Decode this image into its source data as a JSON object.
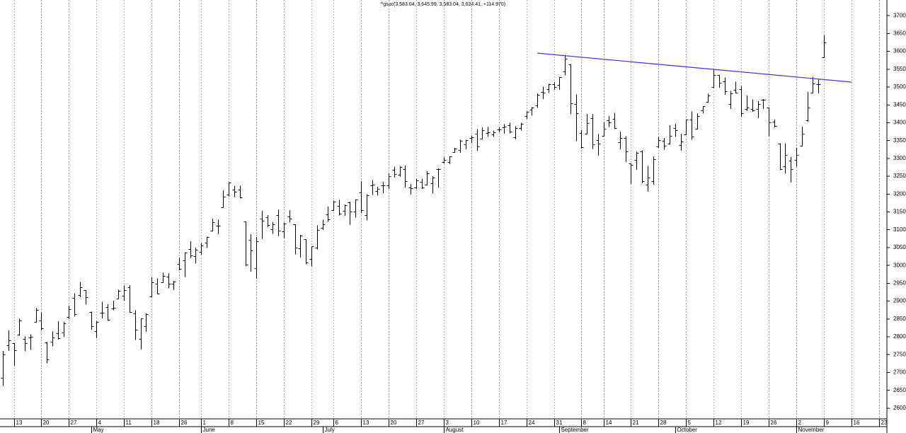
{
  "chart_data": {
    "type": "ohlc",
    "title": "^gspc(3,583.04, 3,645.99, 3,583.04, 3,624.41, +114.970)",
    "color": "#000000",
    "grid": true,
    "ylim": [
      2570,
      3744
    ],
    "yticks": [
      2600,
      2650,
      2700,
      2750,
      2800,
      2850,
      2900,
      2950,
      3000,
      3050,
      3100,
      3150,
      3200,
      3250,
      3300,
      3350,
      3400,
      3450,
      3500,
      3550,
      3600,
      3650,
      3700
    ],
    "categories": [
      null,
      null,
      "13",
      null,
      null,
      null,
      null,
      "20",
      null,
      null,
      null,
      null,
      "27",
      null,
      null,
      null,
      null,
      "4",
      null,
      null,
      null,
      null,
      "11",
      null,
      null,
      null,
      null,
      "18",
      null,
      null,
      null,
      null,
      "26",
      null,
      null,
      null,
      "1",
      null,
      null,
      null,
      null,
      "8",
      null,
      null,
      null,
      null,
      "15",
      null,
      null,
      null,
      null,
      "22",
      null,
      null,
      null,
      null,
      "29",
      null,
      null,
      null,
      "6",
      null,
      null,
      null,
      null,
      "13",
      null,
      null,
      null,
      null,
      "20",
      null,
      null,
      null,
      null,
      "27",
      null,
      null,
      null,
      null,
      "3",
      null,
      null,
      null,
      null,
      "10",
      null,
      null,
      null,
      null,
      "17",
      null,
      null,
      null,
      null,
      "24",
      null,
      null,
      null,
      null,
      "31",
      null,
      null,
      null,
      null,
      "8",
      null,
      null,
      null,
      "14",
      null,
      null,
      null,
      null,
      "21",
      null,
      null,
      null,
      null,
      "28",
      null,
      null,
      null,
      null,
      "5",
      null,
      null,
      null,
      null,
      "12",
      null,
      null,
      null,
      null,
      "19",
      null,
      null,
      null,
      null,
      "26",
      null,
      null,
      null,
      null,
      "2",
      null,
      null,
      null,
      null,
      "9",
      null,
      null,
      null,
      null,
      "16",
      null,
      null,
      null,
      null,
      "23",
      null
    ],
    "months": [
      null,
      null,
      null,
      null,
      null,
      null,
      null,
      null,
      null,
      null,
      null,
      null,
      null,
      null,
      null,
      null,
      "May",
      null,
      null,
      null,
      null,
      null,
      null,
      null,
      null,
      null,
      null,
      null,
      null,
      null,
      null,
      null,
      null,
      null,
      null,
      null,
      "June",
      null,
      null,
      null,
      null,
      null,
      null,
      null,
      null,
      null,
      null,
      null,
      null,
      null,
      null,
      null,
      null,
      null,
      null,
      null,
      null,
      null,
      "July",
      null,
      null,
      null,
      null,
      null,
      null,
      null,
      null,
      null,
      null,
      null,
      null,
      null,
      null,
      null,
      null,
      null,
      null,
      null,
      null,
      null,
      "August",
      null,
      null,
      null,
      null,
      null,
      null,
      null,
      null,
      null,
      null,
      null,
      null,
      null,
      null,
      null,
      null,
      null,
      null,
      null,
      null,
      "September",
      null,
      null,
      null,
      null,
      null,
      null,
      null,
      null,
      null,
      null,
      null,
      null,
      null,
      null,
      null,
      null,
      null,
      null,
      null,
      null,
      "October",
      null,
      null,
      null,
      null,
      null,
      null,
      null,
      null,
      null,
      null,
      null,
      null,
      null,
      null,
      null,
      null,
      null,
      null,
      null,
      null,
      null,
      "November",
      null,
      null,
      null,
      null,
      null,
      null,
      null,
      null,
      null,
      null,
      null,
      null,
      null,
      null,
      null,
      null
    ],
    "open": [
      2686,
      2776,
      2782,
      2805,
      2795,
      2799,
      2842,
      2845,
      2784,
      2787,
      2810,
      2812,
      2855,
      2909,
      2918,
      2930,
      2870,
      2815,
      2868,
      2883,
      2879,
      2908,
      2915,
      2939,
      2865,
      2794,
      2829,
      2913,
      2948,
      2953,
      2969,
      2948,
      3005,
      3015,
      3046,
      3026,
      3038,
      3064,
      3098,
      3112,
      3163,
      3199,
      3213,
      3213,
      3123,
      3072,
      2993,
      3131,
      3136,
      3101,
      3141,
      3095,
      3138,
      3115,
      3047,
      3074,
      3018,
      3050,
      3105,
      3144,
      3155,
      3166,
      3154,
      3177,
      3152,
      3205,
      3141,
      3225,
      3208,
      3224,
      3224,
      3268,
      3255,
      3271,
      3218,
      3219,
      3234,
      3227,
      3231,
      3270,
      3289,
      3289,
      3318,
      3323,
      3340,
      3357,
      3370,
      3356,
      3372,
      3368,
      3381,
      3387,
      3392,
      3360,
      3386,
      3419,
      3436,
      3449,
      3486,
      3495,
      3509,
      3507,
      3543,
      3564,
      3453,
      3371,
      3370,
      3413,
      3352,
      3364,
      3407,
      3411,
      3346,
      3357,
      3285,
      3295,
      3320,
      3226,
      3236,
      3334,
      3350,
      3341,
      3385,
      3338,
      3367,
      3409,
      3384,
      3434,
      3459,
      3500,
      3534,
      3515,
      3453,
      3493,
      3494,
      3439,
      3439,
      3439,
      3464,
      3442,
      3403,
      3342,
      3277,
      3294,
      3296,
      3336,
      3406,
      3485,
      3508,
      3583.04,
      null,
      null,
      null,
      null,
      null,
      null,
      null,
      null,
      null,
      null,
      null
    ],
    "high": [
      2760,
      2818,
      2782,
      2851,
      2801,
      2807,
      2880,
      2868,
      2785,
      2815,
      2844,
      2842,
      2887,
      2922,
      2954,
      2930,
      2870,
      2844,
      2898,
      2891,
      2901,
      2932,
      2944,
      2945,
      2874,
      2852,
      2865,
      2968,
      2964,
      2980,
      2978,
      2957,
      3022,
      3037,
      3068,
      3050,
      3063,
      3081,
      3131,
      3128,
      3211,
      3233,
      3222,
      3223,
      3123,
      3088,
      3080,
      3153,
      3141,
      3121,
      3156,
      3120,
      3155,
      3115,
      3086,
      3074,
      3053,
      3112,
      3128,
      3165,
      3182,
      3184,
      3171,
      3179,
      3186,
      3235,
      3200,
      3238,
      3220,
      3233,
      3258,
      3277,
      3279,
      3280,
      3228,
      3242,
      3243,
      3264,
      3250,
      3272,
      3303,
      3306,
      3330,
      3352,
      3352,
      3364,
      3382,
      3387,
      3388,
      3378,
      3388,
      3396,
      3400,
      3390,
      3400,
      3432,
      3444,
      3482,
      3501,
      3509,
      3514,
      3529,
      3588,
      3564,
      3479,
      3380,
      3425,
      3425,
      3368,
      3402,
      3419,
      3428,
      3375,
      3362,
      3286,
      3320,
      3323,
      3279,
      3306,
      3360,
      3357,
      3393,
      3397,
      3369,
      3409,
      3432,
      3426,
      3447,
      3482,
      3550,
      3534,
      3527,
      3489,
      3515,
      3502,
      3476,
      3465,
      3460,
      3466,
      3442,
      3409,
      3342,
      3342,
      3304,
      3330,
      3389,
      3486,
      3529,
      3521,
      3645.99,
      null,
      null,
      null,
      null,
      null,
      null,
      null,
      null,
      null,
      null,
      null
    ],
    "low": [
      2664,
      2762,
      2721,
      2805,
      2761,
      2765,
      2842,
      2820,
      2728,
      2775,
      2794,
      2801,
      2852,
      2859,
      2913,
      2892,
      2822,
      2798,
      2854,
      2847,
      2876,
      2908,
      2903,
      2869,
      2793,
      2766,
      2816,
      2913,
      2922,
      2953,
      2938,
      2933,
      2988,
      2970,
      3023,
      3007,
      3032,
      3051,
      3098,
      3090,
      3163,
      3196,
      3193,
      3190,
      2999,
      2984,
      2965,
      3076,
      3109,
      3091,
      3084,
      3079,
      3122,
      3033,
      3024,
      3005,
      2999,
      3047,
      3101,
      3124,
      3155,
      3142,
      3141,
      3115,
      3136,
      3150,
      3128,
      3200,
      3198,
      3205,
      3216,
      3248,
      3250,
      3220,
      3201,
      3216,
      3216,
      3227,
      3204,
      3220,
      3288,
      3286,
      3318,
      3318,
      3328,
      3344,
      3323,
      3356,
      3363,
      3362,
      3375,
      3371,
      3372,
      3355,
      3380,
      3413,
      3422,
      3444,
      3468,
      3485,
      3494,
      3494,
      3535,
      3427,
      3350,
      3330,
      3370,
      3329,
      3310,
      3364,
      3390,
      3384,
      3328,
      3292,
      3230,
      3270,
      3232,
      3209,
      3228,
      3332,
      3327,
      3340,
      3362,
      3324,
      3367,
      3354,
      3384,
      3428,
      3458,
      3500,
      3500,
      3480,
      3441,
      3484,
      3419,
      3435,
      3433,
      3415,
      3441,
      3364,
      3389,
      3269,
      3259,
      3234,
      3279,
      3336,
      3405,
      3485,
      3484,
      3583.04,
      null,
      null,
      null,
      null,
      null,
      null,
      null,
      null,
      null,
      null,
      null
    ],
    "close": [
      2750,
      2790,
      2762,
      2846,
      2783,
      2800,
      2875,
      2823,
      2737,
      2799,
      2797,
      2837,
      2878,
      2863,
      2939,
      2912,
      2830,
      2842,
      2868,
      2848,
      2881,
      2929,
      2930,
      2870,
      2820,
      2852,
      2863,
      2953,
      2922,
      2971,
      2949,
      2955,
      2991,
      3036,
      3029,
      3044,
      3055,
      3080,
      3122,
      3112,
      3193,
      3232,
      3207,
      3190,
      3002,
      3041,
      3067,
      3125,
      3113,
      3115,
      3097,
      3117,
      3131,
      3050,
      3083,
      3009,
      3053,
      3100,
      3116,
      3130,
      3179,
      3145,
      3169,
      3152,
      3185,
      3155,
      3197,
      3227,
      3215,
      3224,
      3251,
      3257,
      3276,
      3236,
      3216,
      3239,
      3218,
      3258,
      3246,
      3271,
      3295,
      3306,
      3327,
      3349,
      3351,
      3360,
      3333,
      3380,
      3373,
      3373,
      3382,
      3389,
      3375,
      3385,
      3397,
      3431,
      3443,
      3479,
      3485,
      3508,
      3500,
      3527,
      3580,
      3455,
      3427,
      3332,
      3399,
      3339,
      3341,
      3383,
      3401,
      3385,
      3357,
      3319,
      3281,
      3315,
      3237,
      3246,
      3298,
      3351,
      3335,
      3363,
      3380,
      3348,
      3408,
      3361,
      3419,
      3446,
      3477,
      3534,
      3511,
      3488,
      3483,
      3484,
      3426,
      3443,
      3435,
      3453,
      3465,
      3400,
      3391,
      3271,
      3310,
      3270,
      3310,
      3370,
      3443,
      3510,
      3509,
      3624.41,
      null,
      null,
      null,
      null,
      null,
      null,
      null,
      null,
      null,
      null,
      null
    ],
    "trendline": {
      "color": "#3333ff",
      "x": [
        97,
        154
      ],
      "values": [
        3595,
        3514
      ]
    }
  }
}
